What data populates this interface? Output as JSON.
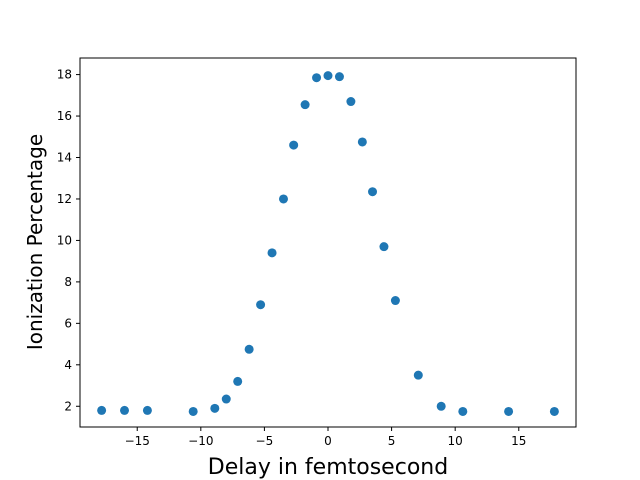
{
  "chart_data": {
    "type": "scatter",
    "title": "",
    "xlabel": "Delay in femtosecond",
    "ylabel": "Ionization Percentage",
    "xlim": [
      -19.5,
      19.5
    ],
    "ylim": [
      1.0,
      18.8
    ],
    "xticks": [
      -15,
      -10,
      -5,
      0,
      5,
      10,
      15
    ],
    "xtick_labels": [
      "−15",
      "−10",
      "−5",
      "0",
      "5",
      "10",
      "15"
    ],
    "yticks": [
      2,
      4,
      6,
      8,
      10,
      12,
      14,
      16,
      18
    ],
    "ytick_labels": [
      "2",
      "4",
      "6",
      "8",
      "10",
      "12",
      "14",
      "16",
      "18"
    ],
    "grid": false,
    "legend": "none",
    "marker_color": "#1f77b4",
    "series": [
      {
        "x": [
          -17.8,
          -16.0,
          -14.2,
          -10.6,
          -8.9,
          -8.0,
          -7.1,
          -6.2,
          -5.3,
          -4.4,
          -3.5,
          -2.7,
          -1.8,
          -0.9,
          0.0,
          0.9,
          1.8,
          2.7,
          3.5,
          4.4,
          5.3,
          7.1,
          8.9,
          10.6,
          14.2,
          17.8
        ],
        "y": [
          1.8,
          1.8,
          1.8,
          1.75,
          1.9,
          2.35,
          3.2,
          4.75,
          6.9,
          9.4,
          12.0,
          14.6,
          16.55,
          17.85,
          17.95,
          17.9,
          16.7,
          14.75,
          12.35,
          9.7,
          7.1,
          3.5,
          2.0,
          1.75,
          1.75,
          1.75
        ]
      }
    ]
  }
}
